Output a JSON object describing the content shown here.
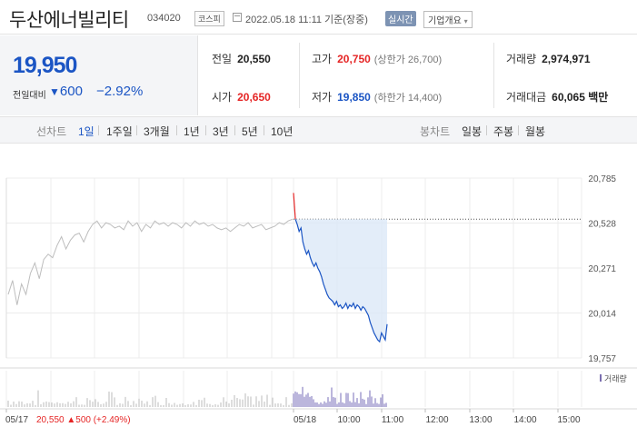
{
  "stock": {
    "name": "두산에너빌리티",
    "code": "034020",
    "market": "코스피",
    "timestamp": "2022.05.18 11:11 기준(장중)",
    "realtime_label": "실시간",
    "corp_overview_label": "기업개요",
    "price": "19,950",
    "change_label": "전일대비",
    "change_arrow": "▼",
    "change": "600",
    "change_pct": "−2.92%"
  },
  "info": {
    "prev_close_label": "전일",
    "prev_close": "20,550",
    "high_label": "고가",
    "high": "20,750",
    "upper_limit": "(상한가 26,700)",
    "volume_label": "거래량",
    "volume": "2,974,971",
    "open_label": "시가",
    "open": "20,650",
    "low_label": "저가",
    "low": "19,850",
    "lower_limit": "(하한가 14,400)",
    "amount_label": "거래대금",
    "amount": "60,065",
    "amount_unit": "백만"
  },
  "tabs": {
    "line_head": "선차트",
    "line": [
      "1일",
      "1주일",
      "3개월",
      "1년",
      "3년",
      "5년",
      "10년"
    ],
    "candle_head": "봉차트",
    "candle": [
      "일봉",
      "주봉",
      "월봉"
    ]
  },
  "colors": {
    "up": "#e52525",
    "down": "#1b55c4",
    "fill": "#dce8f8",
    "prev": "#bdbdbd"
  },
  "chart_data": {
    "type": "line",
    "y_ticks": [
      "20,785",
      "20,528",
      "20,271",
      "20,014",
      "19,757"
    ],
    "ylim": [
      19757,
      20785
    ],
    "prev_close": 20550,
    "x_labels": [
      "05/17",
      "05/18",
      "10:00",
      "11:00",
      "12:00",
      "13:00",
      "14:00",
      "15:00"
    ],
    "prev_day_footer": {
      "close": "20,550",
      "arrow": "▲",
      "change": "500",
      "pct": "(+2.49%)"
    },
    "volume_legend": "거래량",
    "prev_day_series": [
      20120,
      20200,
      20060,
      20180,
      20120,
      20240,
      20300,
      20210,
      20320,
      20350,
      20330,
      20400,
      20450,
      20380,
      20430,
      20460,
      20470,
      20420,
      20480,
      20520,
      20540,
      20500,
      20530,
      20520,
      20500,
      20510,
      20490,
      20540,
      20510,
      20530,
      20480,
      20520,
      20500,
      20540,
      20520,
      20530,
      20510,
      20530,
      20520,
      20500,
      20530,
      20510,
      20540,
      20520,
      20530,
      20510,
      20520,
      20500,
      20490,
      20500,
      20480,
      20500,
      20520,
      20510,
      20530,
      20500,
      20510,
      20520,
      20490,
      20500,
      20510,
      20530,
      20520,
      20540,
      20550
    ],
    "today_series": [
      20700,
      20550,
      20520,
      20480,
      20500,
      20420,
      20380,
      20350,
      20370,
      20330,
      20300,
      20280,
      20300,
      20270,
      20250,
      20220,
      20180,
      20150,
      20120,
      20100,
      20090,
      20080,
      20060,
      20080,
      20050,
      20060,
      20040,
      20050,
      20070,
      20040,
      20060,
      20050,
      20070,
      20040,
      20060,
      20050,
      20030,
      20050,
      20040,
      20020,
      20000,
      19960,
      19930,
      19900,
      19880,
      19860,
      19850,
      19900,
      19880,
      19860,
      19950
    ]
  }
}
